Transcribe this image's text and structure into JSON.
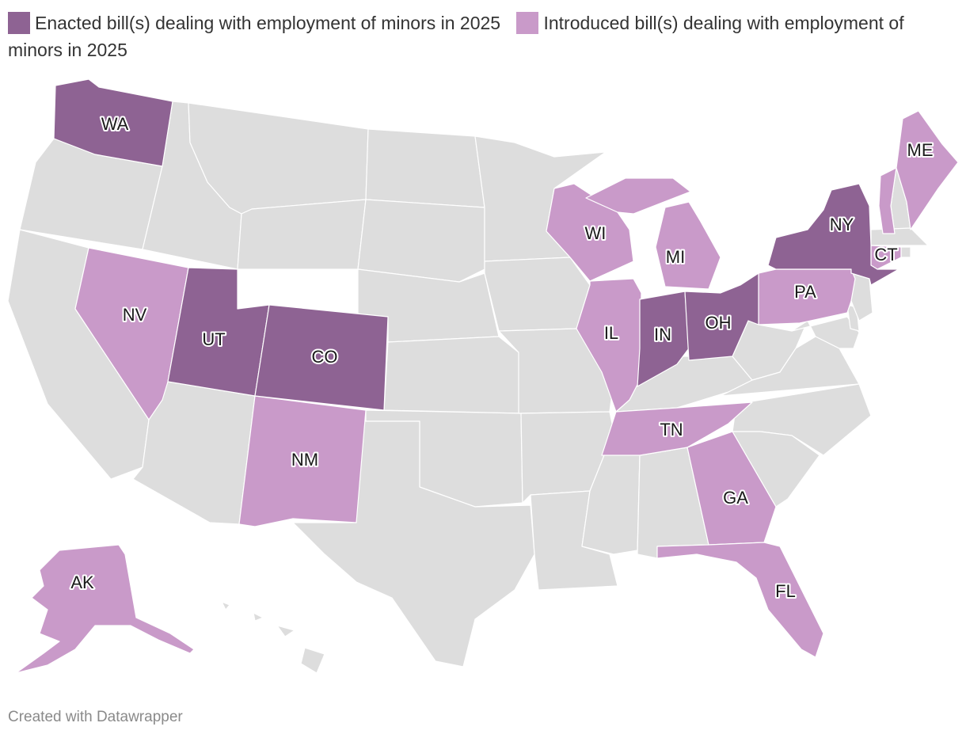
{
  "legend": {
    "enacted": {
      "label": "Enacted bill(s) dealing with employment of minors in 2025",
      "color": "#8e6393"
    },
    "introduced": {
      "label": "Introduced bill(s) dealing with employment of minors in 2025",
      "color": "#c99ac9"
    }
  },
  "colors": {
    "none": "#dddddd",
    "border": "#ffffff"
  },
  "states": {
    "enacted": [
      "WA",
      "UT",
      "CO",
      "IN",
      "OH",
      "NY"
    ],
    "introduced": [
      "NV",
      "NM",
      "WI",
      "MI",
      "IL",
      "TN",
      "GA",
      "FL",
      "PA",
      "ME",
      "VT",
      "CT",
      "AK"
    ]
  },
  "labels": {
    "WA": "WA",
    "NV": "NV",
    "UT": "UT",
    "CO": "CO",
    "NM": "NM",
    "WI": "WI",
    "MI": "MI",
    "IL": "IL",
    "IN": "IN",
    "OH": "OH",
    "TN": "TN",
    "GA": "GA",
    "FL": "FL",
    "PA": "PA",
    "NY": "NY",
    "CT": "CT",
    "ME": "ME",
    "AK": "AK"
  },
  "credit": "Created with Datawrapper"
}
